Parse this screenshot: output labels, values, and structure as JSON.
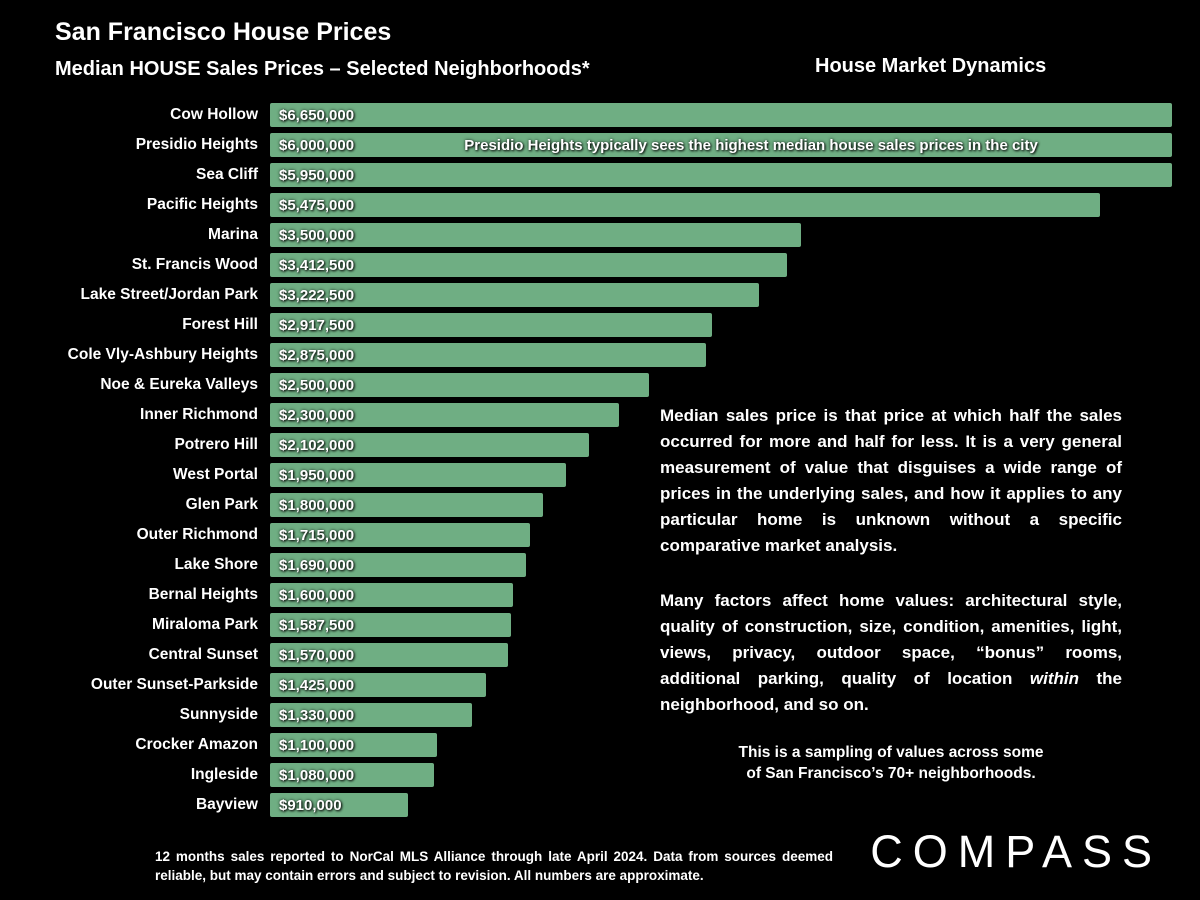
{
  "header": {
    "title": "San Francisco House Prices",
    "subtitle": "Median HOUSE Sales Prices – Selected Neighborhoods*",
    "right_title": "House Market Dynamics"
  },
  "colors": {
    "background": "#000000",
    "bar": "#6fae83",
    "text": "#ffffff"
  },
  "chart_data": {
    "type": "bar",
    "orientation": "horizontal",
    "title": "Median HOUSE Sales Prices – Selected Neighborhoods*",
    "xlim": [
      0,
      5950000
    ],
    "bars_clipped_at_max": true,
    "categories": [
      "Cow Hollow",
      "Presidio Heights",
      "Sea Cliff",
      "Pacific Heights",
      "Marina",
      "St. Francis Wood",
      "Lake Street/Jordan Park",
      "Forest Hill",
      "Cole Vly-Ashbury Heights",
      "Noe & Eureka Valleys",
      "Inner Richmond",
      "Potrero Hill",
      "West Portal",
      "Glen Park",
      "Outer Richmond",
      "Lake Shore",
      "Bernal Heights",
      "Miraloma Park",
      "Central Sunset",
      "Outer Sunset-Parkside",
      "Sunnyside",
      "Crocker Amazon",
      "Ingleside",
      "Bayview"
    ],
    "values": [
      6650000,
      6000000,
      5950000,
      5475000,
      3500000,
      3412500,
      3222500,
      2917500,
      2875000,
      2500000,
      2300000,
      2102000,
      1950000,
      1800000,
      1715000,
      1690000,
      1600000,
      1587500,
      1570000,
      1425000,
      1330000,
      1100000,
      1080000,
      910000
    ],
    "value_labels": [
      "$6,650,000",
      "$6,000,000",
      "$5,950,000",
      "$5,475,000",
      "$3,500,000",
      "$3,412,500",
      "$3,222,500",
      "$2,917,500",
      "$2,875,000",
      "$2,500,000",
      "$2,300,000",
      "$2,102,000",
      "$1,950,000",
      "$1,800,000",
      "$1,715,000",
      "$1,690,000",
      "$1,600,000",
      "$1,587,500",
      "$1,570,000",
      "$1,425,000",
      "$1,330,000",
      "$1,100,000",
      "$1,080,000",
      "$910,000"
    ],
    "annotation": {
      "row_index": 1,
      "text": "Presidio Heights typically sees the highest median house sales prices in the city"
    }
  },
  "text_blocks": {
    "median_explainer": "Median sales price is that price at which half the sales occurred for more and half for less. It is a very general measurement of value that disguises a wide range of prices in the underlying sales, and how it applies to any particular home is unknown without a specific comparative market analysis.",
    "factors": {
      "part1": "Many factors affect home values: architectural style, quality of construction, size, condition, amenities, light, views, privacy, outdoor space, “bonus” rooms, additional parking, quality of location ",
      "italic": "within",
      "part2": " the neighborhood, and so on."
    },
    "sampling": {
      "line1": "This is a sampling of values across some",
      "line2": "of San Francisco’s 70+ neighborhoods."
    }
  },
  "footer": {
    "disclaimer": "12 months sales reported to NorCal MLS Alliance through late April 2024. Data from sources deemed reliable, but may contain errors and subject to revision. All numbers are approximate.",
    "logo": "COMPASS"
  }
}
